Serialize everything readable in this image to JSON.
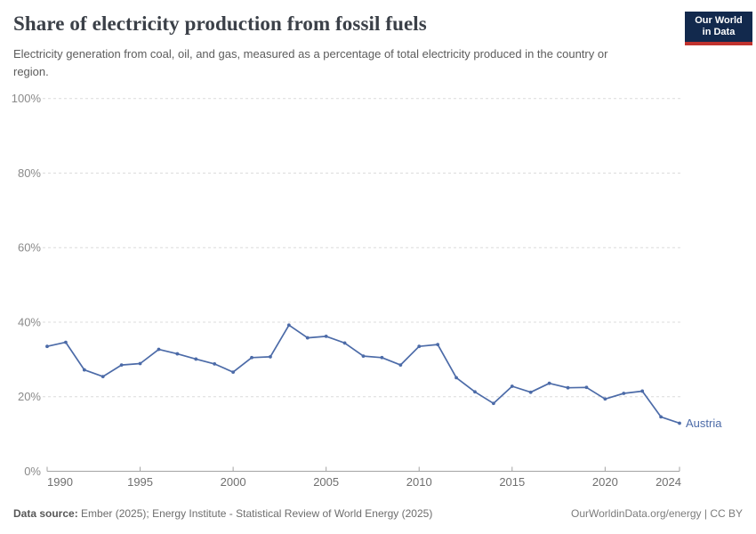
{
  "header": {
    "title": "Share of electricity production from fossil fuels",
    "subtitle": "Electricity generation from coal, oil, and gas, measured as a percentage of total electricity produced in the country or region.",
    "logo": {
      "line1": "Our World",
      "line2": "in Data",
      "bg_color": "#12294d",
      "accent_color": "#c0322e"
    }
  },
  "footer": {
    "source_label": "Data source:",
    "source_text": " Ember (2025); Energy Institute - Statistical Review of World Energy (2025)",
    "credit": "OurWorldinData.org/energy | CC BY"
  },
  "chart_data": {
    "type": "line",
    "title": "Share of electricity production from fossil fuels",
    "xlabel": "",
    "ylabel": "",
    "ylim": [
      0,
      100
    ],
    "yticks": [
      0,
      20,
      40,
      60,
      80,
      100
    ],
    "ytick_suffix": "%",
    "xticks": [
      1990,
      1995,
      2000,
      2005,
      2010,
      2015,
      2020,
      2024
    ],
    "xlim": [
      1990,
      2024
    ],
    "grid": "horizontal-dashed",
    "legend_position": "line-end-label",
    "x": [
      1990,
      1991,
      1992,
      1993,
      1994,
      1995,
      1996,
      1997,
      1998,
      1999,
      2000,
      2001,
      2002,
      2003,
      2004,
      2005,
      2006,
      2007,
      2008,
      2009,
      2010,
      2011,
      2012,
      2013,
      2014,
      2015,
      2016,
      2017,
      2018,
      2019,
      2020,
      2021,
      2022,
      2023,
      2024
    ],
    "series": [
      {
        "name": "Austria",
        "color": "#4c6ba8",
        "values": [
          33.5,
          34.6,
          27.2,
          25.4,
          28.5,
          28.9,
          32.7,
          31.5,
          30.1,
          28.8,
          26.6,
          30.5,
          30.7,
          39.2,
          35.8,
          36.2,
          34.4,
          30.9,
          30.5,
          28.5,
          33.5,
          34.0,
          25.1,
          21.3,
          18.2,
          22.8,
          21.2,
          23.6,
          22.4,
          22.5,
          19.4,
          20.9,
          21.5,
          14.6,
          12.9
        ]
      }
    ],
    "colors": {
      "gridline": "#dcdcdc",
      "axis_line": "#a3a3a3",
      "ytick_label": "#8a8a8a",
      "xtick_label": "#6f6f6f"
    }
  }
}
